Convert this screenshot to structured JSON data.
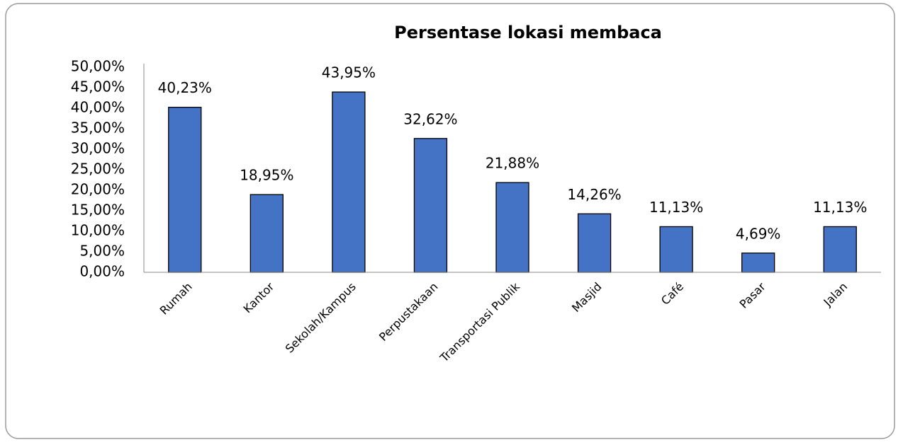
{
  "chart_data": {
    "type": "bar",
    "title": "Persentase lokasi membaca",
    "categories": [
      "Rumah",
      "Kantor",
      "Sekolah/Kampus",
      "Perpustakaan",
      "Transportasi Publik",
      "Masjid",
      "Café",
      "Pasar",
      "Jalan"
    ],
    "values": [
      40.23,
      18.95,
      43.95,
      32.62,
      21.88,
      14.26,
      11.13,
      4.69,
      11.13
    ],
    "value_labels": [
      "40,23%",
      "18,95%",
      "43,95%",
      "32,62%",
      "21,88%",
      "14,26%",
      "11,13%",
      "4,69%",
      "11,13%"
    ],
    "color": "#4472c4",
    "ylim": [
      0,
      50
    ],
    "yticks": [
      {
        "value": 0,
        "label": "0,00%"
      },
      {
        "value": 5,
        "label": "5,00%"
      },
      {
        "value": 10,
        "label": "10,00%"
      },
      {
        "value": 15,
        "label": "15,00%"
      },
      {
        "value": 20,
        "label": "20,00%"
      },
      {
        "value": 25,
        "label": "25,00%"
      },
      {
        "value": 30,
        "label": "30,00%"
      },
      {
        "value": 35,
        "label": "35,00%"
      },
      {
        "value": 40,
        "label": "40,00%"
      },
      {
        "value": 45,
        "label": "45,00%"
      },
      {
        "value": 50,
        "label": "50,00%"
      }
    ],
    "grid": false
  }
}
